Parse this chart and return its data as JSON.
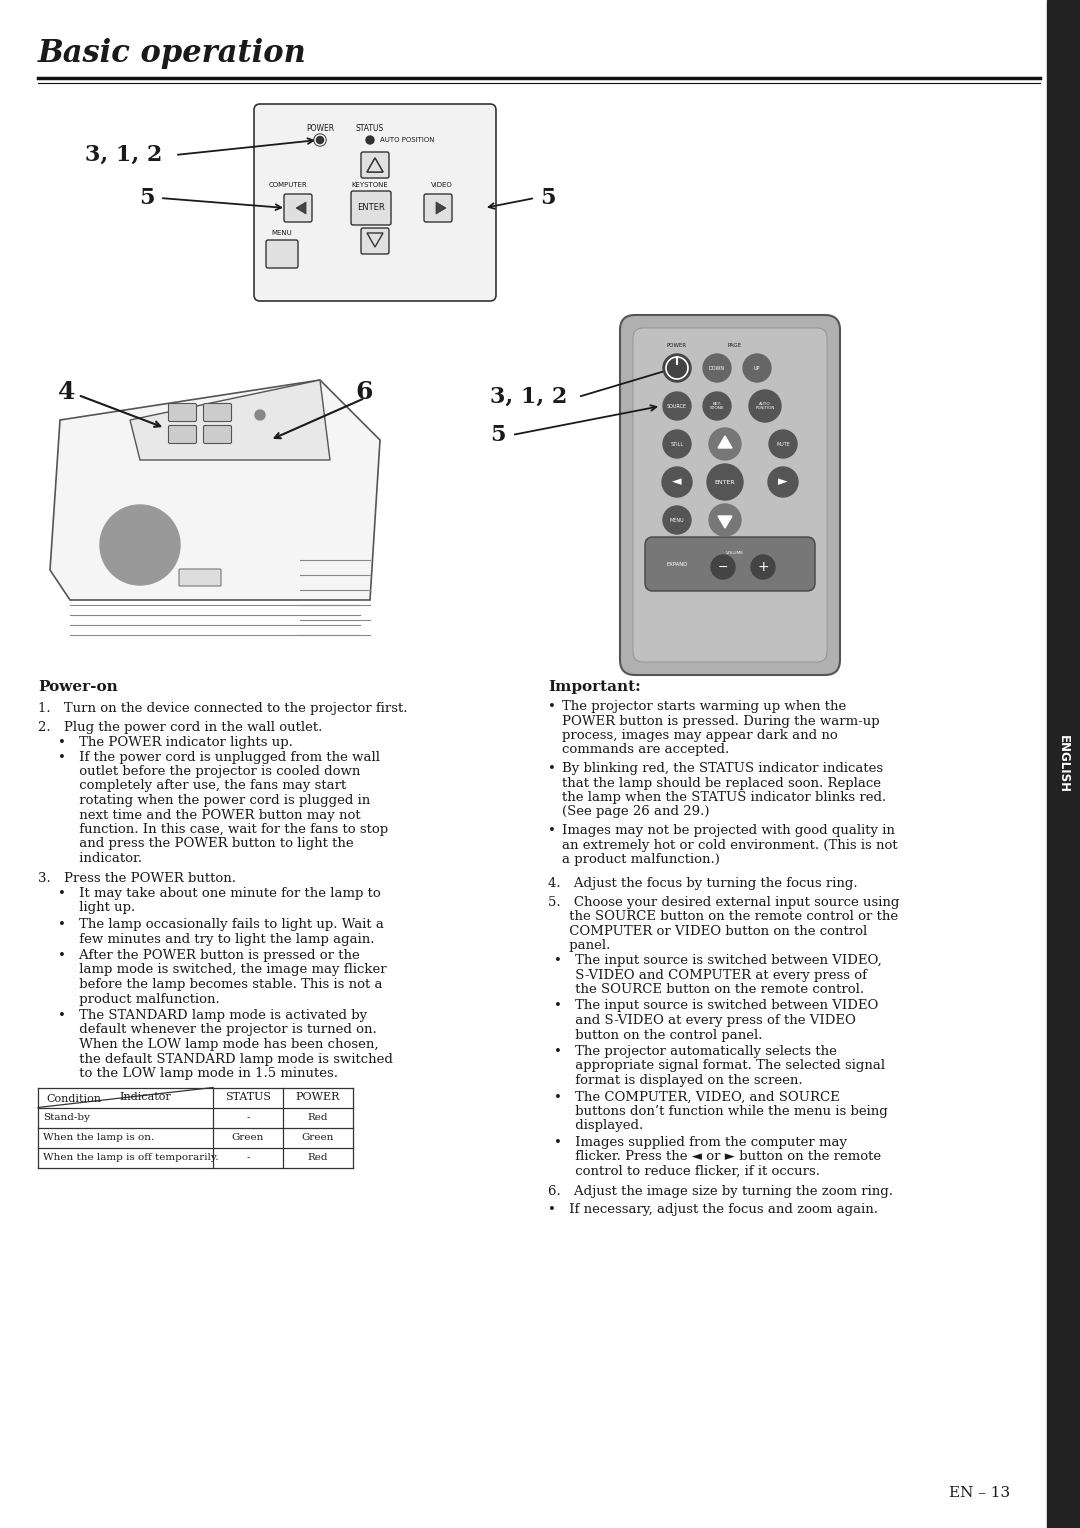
{
  "title": "Basic operation",
  "bg_color": "#ffffff",
  "text_color": "#1a1a1a",
  "sidebar_color": "#222222",
  "english_label": "ENGLISH",
  "page_number": "EN – 13",
  "power_on_title": "Power-on",
  "important_title": "Important:",
  "label_3_1_2_top": "3, 1, 2",
  "label_5_left": "5",
  "label_5_right": "5",
  "label_4": "4",
  "label_6": "6",
  "label_3_1_2_bot": "3, 1, 2",
  "label_5_bot": "5"
}
